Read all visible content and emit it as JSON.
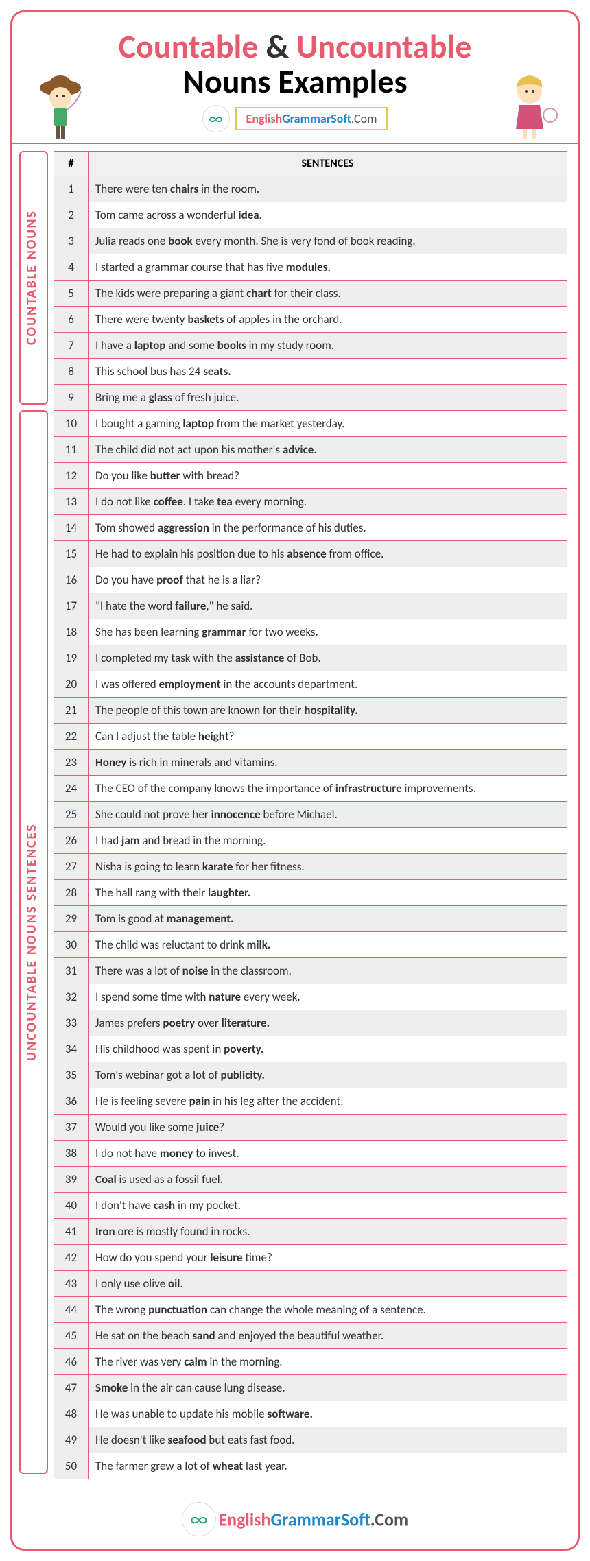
{
  "title_word1": "Countable",
  "title_amp": "&",
  "title_word2": "Uncountable",
  "title_line2": "Nouns Examples",
  "site_en": "English",
  "site_gs": "GrammarSoft",
  "site_com": ".Com",
  "label_countable": "COUNTABLE NOUNS",
  "label_uncountable": "UNCOUNTABLE NOUNS SENTENCES",
  "col_num": "#",
  "col_sent": "SENTENCES",
  "rows": [
    {
      "n": "1",
      "s": "There were ten <b>chairs</b> in the room."
    },
    {
      "n": "2",
      "s": "Tom came across a wonderful <b>idea.</b>"
    },
    {
      "n": "3",
      "s": "Julia reads one <b>book</b> every month. She is very fond of book reading."
    },
    {
      "n": "4",
      "s": "I started a grammar course that has five <b>modules.</b>"
    },
    {
      "n": "5",
      "s": "The kids were preparing a giant <b>chart</b> for their class."
    },
    {
      "n": "6",
      "s": "There were twenty <b>baskets</b> of apples in the orchard."
    },
    {
      "n": "7",
      "s": "I have a <b>laptop</b> and some <b>books</b> in my study room."
    },
    {
      "n": "8",
      "s": "This school bus has 24 <b>seats.</b>"
    },
    {
      "n": "9",
      "s": "Bring me a <b>glass</b> of fresh juice."
    },
    {
      "n": "10",
      "s": "I bought a gaming <b>laptop</b> from the market yesterday."
    },
    {
      "n": "11",
      "s": "The child did not act upon his mother's <b>advice</b>."
    },
    {
      "n": "12",
      "s": "Do you like <b>butter</b> with bread?"
    },
    {
      "n": "13",
      "s": "I do not like <b>coffee</b>. I take <b>tea</b> every morning."
    },
    {
      "n": "14",
      "s": "Tom showed <b>aggression</b> in the performance of his duties."
    },
    {
      "n": "15",
      "s": "He had to explain his position due to his <b>absence</b> from office."
    },
    {
      "n": "16",
      "s": "Do you have <b>proof</b> that he is a liar?"
    },
    {
      "n": "17",
      "s": "\"I hate the word <b>failure</b>,\" he said."
    },
    {
      "n": "18",
      "s": "She has been learning <b>grammar</b> for two weeks."
    },
    {
      "n": "19",
      "s": "I completed my task with the <b>assistance</b> of Bob."
    },
    {
      "n": "20",
      "s": "I was offered <b>employment</b> in the accounts department."
    },
    {
      "n": "21",
      "s": "The people of this town are known for their <b>hospitality.</b>"
    },
    {
      "n": "22",
      "s": "Can I adjust the table <b>height</b>?"
    },
    {
      "n": "23",
      "s": "<b>Honey</b> is rich in minerals and vitamins."
    },
    {
      "n": "24",
      "s": "The CEO of the company knows the importance of <b>infrastructure</b> improvements."
    },
    {
      "n": "25",
      "s": "She could not prove her <b>innocence</b> before Michael."
    },
    {
      "n": "26",
      "s": "I had <b>jam</b> and bread in the morning."
    },
    {
      "n": "27",
      "s": "Nisha is going to learn <b>karate</b> for her fitness."
    },
    {
      "n": "28",
      "s": "The hall rang with their <b>laughter.</b>"
    },
    {
      "n": "29",
      "s": "Tom is good at <b>management.</b>"
    },
    {
      "n": "30",
      "s": "The child was reluctant to drink <b>milk.</b>"
    },
    {
      "n": "31",
      "s": "There was a lot of <b>noise</b> in the classroom."
    },
    {
      "n": "32",
      "s": "I spend some time with <b>nature</b> every week."
    },
    {
      "n": "33",
      "s": "James prefers <b>poetry</b> over <b>literature.</b>"
    },
    {
      "n": "34",
      "s": "His childhood was spent in <b>poverty.</b>"
    },
    {
      "n": "35",
      "s": "Tom's webinar got a lot of <b>publicity.</b>"
    },
    {
      "n": "36",
      "s": "He is feeling severe <b>pain</b> in his leg after the accident."
    },
    {
      "n": "37",
      "s": "Would you like some <b>juice</b>?"
    },
    {
      "n": "38",
      "s": "I do not have <b>money</b> to invest."
    },
    {
      "n": "39",
      "s": "<b>Coal</b> is used as a fossil fuel."
    },
    {
      "n": "40",
      "s": "I don't have <b>cash</b> in my pocket."
    },
    {
      "n": "41",
      "s": "<b>Iron</b> ore is mostly found in rocks."
    },
    {
      "n": "42",
      "s": "How do you spend your <b>leisure</b> time?"
    },
    {
      "n": "43",
      "s": "I only use olive <b>oil</b>."
    },
    {
      "n": "44",
      "s": "The wrong <b>punctuation</b> can change the whole meaning of a sentence."
    },
    {
      "n": "45",
      "s": "He sat on the beach <b>sand</b> and enjoyed the beautiful weather."
    },
    {
      "n": "46",
      "s": "The river was very <b>calm</b> in the morning."
    },
    {
      "n": "47",
      "s": "<b>Smoke</b> in the air can cause lung disease."
    },
    {
      "n": "48",
      "s": "He was unable to update his mobile <b>software.</b>"
    },
    {
      "n": "49",
      "s": "He doesn't like <b>seafood</b> but eats fast food."
    },
    {
      "n": "50",
      "s": "The farmer grew a lot of <b>wheat</b> last year."
    }
  ]
}
